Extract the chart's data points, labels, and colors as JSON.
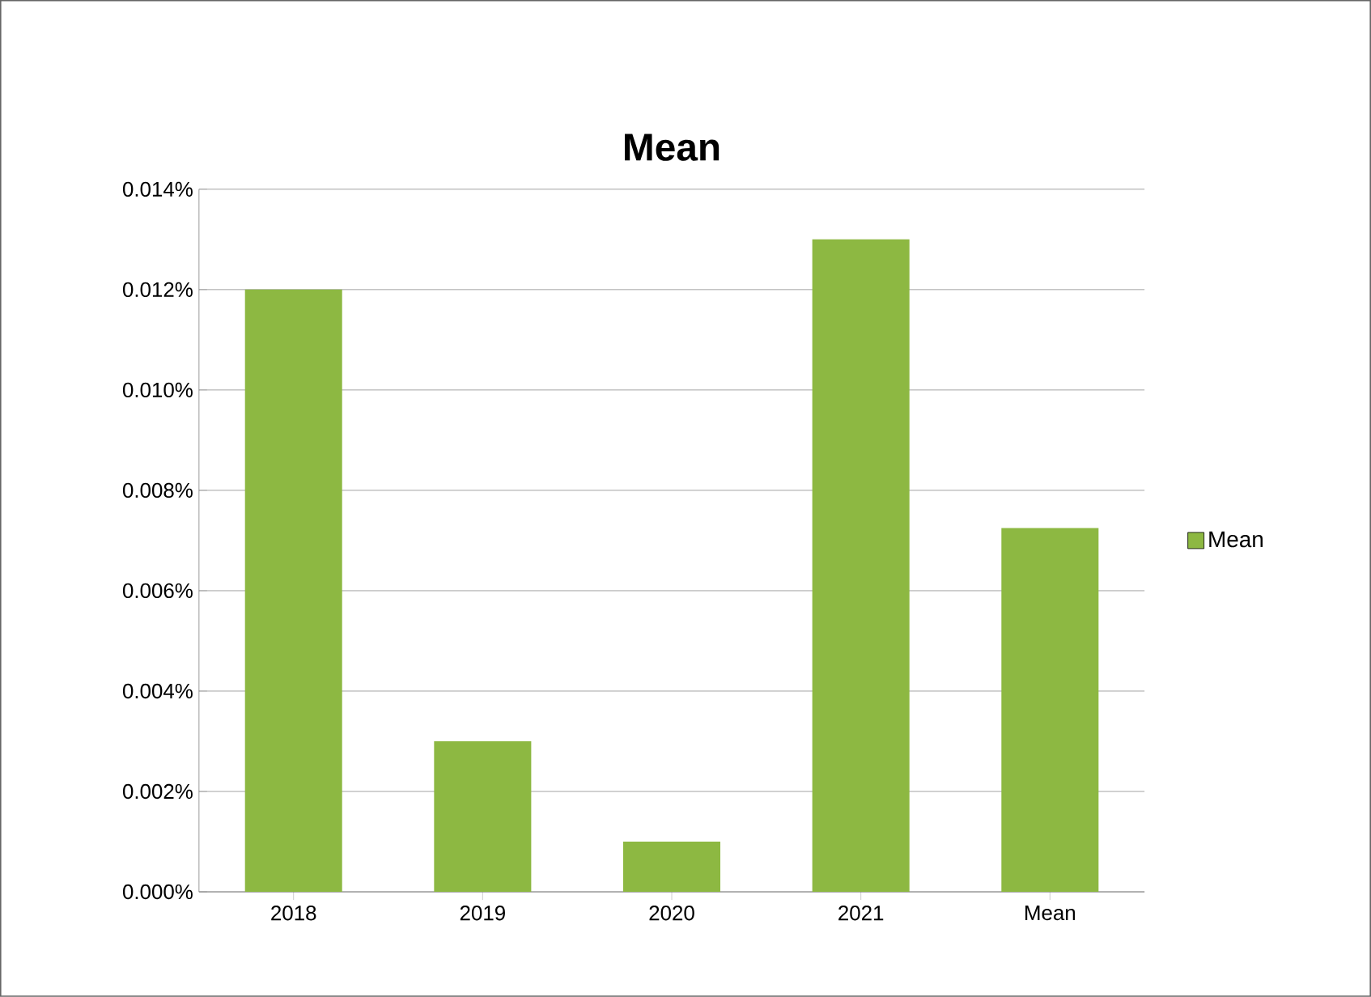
{
  "chart_data": {
    "type": "bar",
    "title": "Mean",
    "categories": [
      "2018",
      "2019",
      "2020",
      "2021",
      "Mean"
    ],
    "series": [
      {
        "name": "Mean",
        "color": "#8db842",
        "values": [
          0.012,
          0.003,
          0.001,
          0.013,
          0.00725
        ]
      }
    ],
    "ylim": [
      0,
      0.014
    ],
    "yticks": [
      {
        "value": 0,
        "label": "0.000%"
      },
      {
        "value": 0.002,
        "label": "0.002%"
      },
      {
        "value": 0.004,
        "label": "0.004%"
      },
      {
        "value": 0.006,
        "label": "0.006%"
      },
      {
        "value": 0.008,
        "label": "0.008%"
      },
      {
        "value": 0.01,
        "label": "0.010%"
      },
      {
        "value": 0.012,
        "label": "0.012%"
      },
      {
        "value": 0.014,
        "label": "0.014%"
      }
    ],
    "grid": "y",
    "legend": "right"
  }
}
